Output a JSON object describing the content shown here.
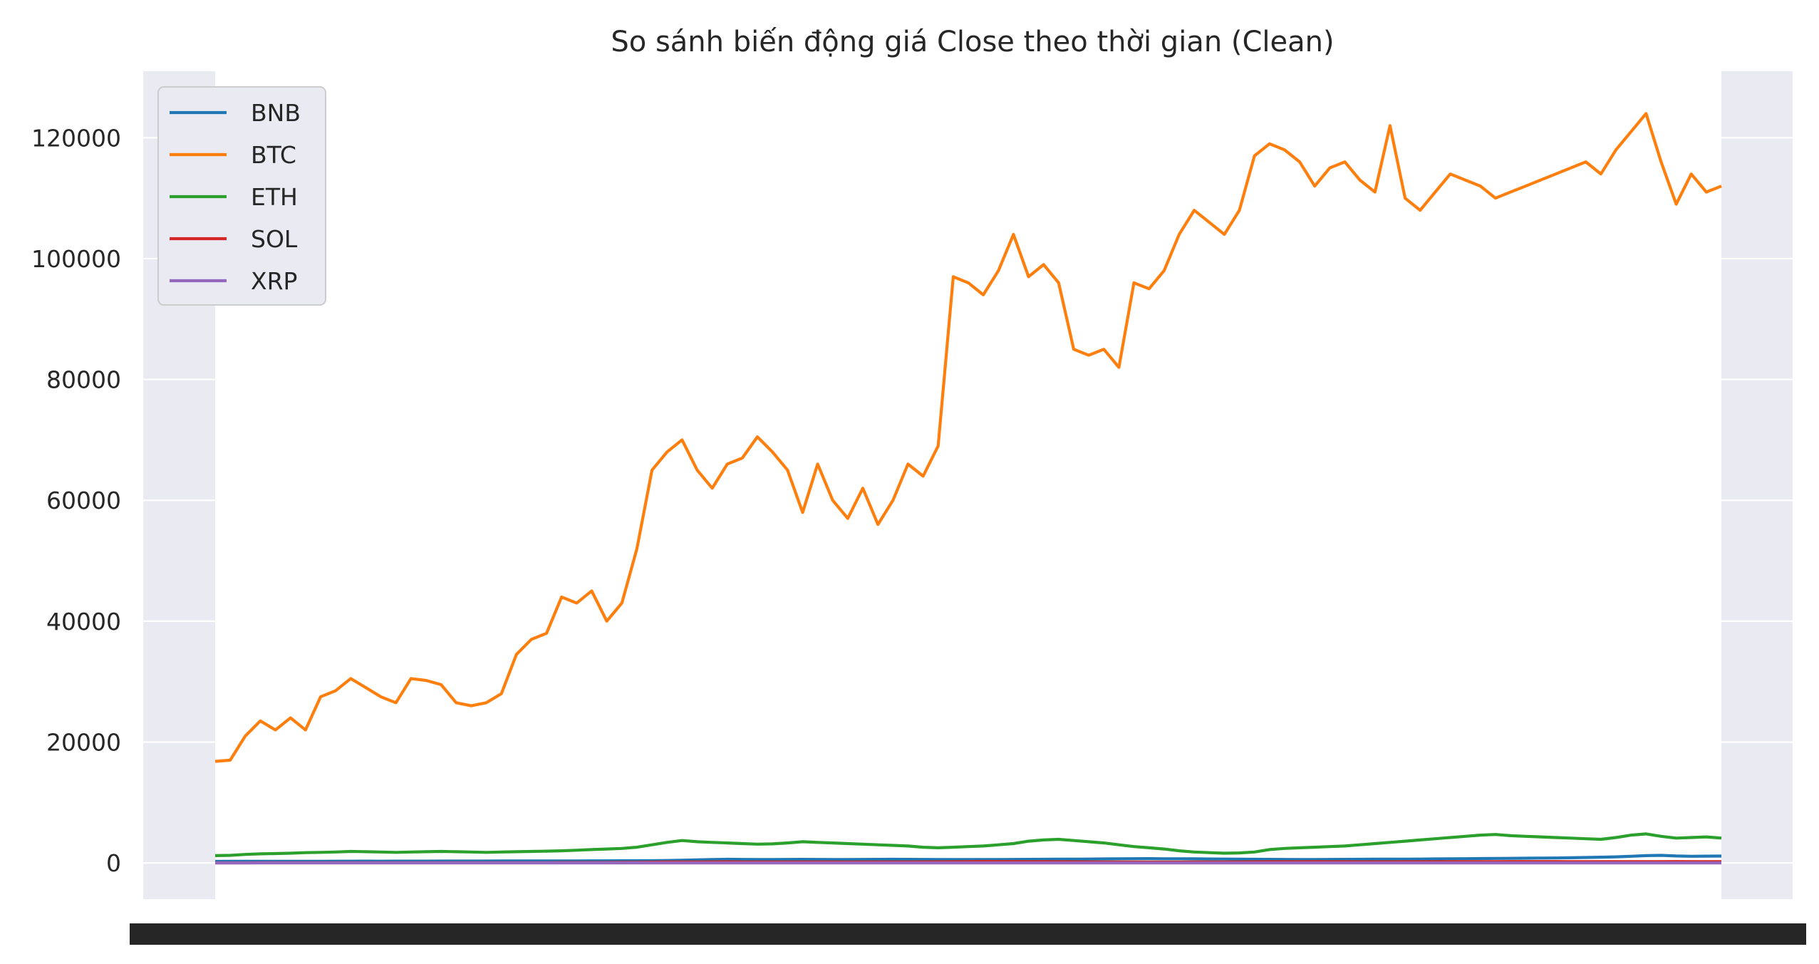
{
  "chart_data": {
    "type": "line",
    "title": "So sánh biến động giá Close theo thời gian (Clean)",
    "xlabel": "",
    "ylabel": "",
    "ylim": [
      -6000,
      131000
    ],
    "yticks": [
      0,
      20000,
      40000,
      60000,
      80000,
      100000,
      120000
    ],
    "ytick_labels": [
      "0",
      "20000",
      "40000",
      "60000",
      "80000",
      "100000",
      "120000"
    ],
    "grid": true,
    "legend_position": "top-left",
    "x_tick_labels_note": "overlapping unreadable date labels",
    "x": [
      0,
      1,
      2,
      3,
      4,
      5,
      6,
      7,
      8,
      9,
      10,
      11,
      12,
      13,
      14,
      15,
      16,
      17,
      18,
      19,
      20,
      21,
      22,
      23,
      24,
      25,
      26,
      27,
      28,
      29,
      30,
      31,
      32,
      33,
      34,
      35,
      36,
      37,
      38,
      39,
      40,
      41,
      42,
      43,
      44,
      45,
      46,
      47,
      48,
      49,
      50,
      51,
      52,
      53,
      54,
      55,
      56,
      57,
      58,
      59,
      60,
      61,
      62,
      63,
      64,
      65,
      66,
      67,
      68,
      69,
      70,
      71,
      72,
      73,
      74,
      75,
      76,
      77,
      78,
      79,
      80,
      81,
      82,
      83,
      84,
      85,
      86,
      87,
      88,
      89,
      90,
      91,
      92,
      93,
      94,
      95,
      96,
      97,
      98,
      99,
      100
    ],
    "series": [
      {
        "name": "BNB",
        "color": "#1f77b4",
        "values": [
          250,
          255,
          260,
          265,
          270,
          268,
          272,
          275,
          280,
          285,
          290,
          288,
          292,
          295,
          300,
          305,
          310,
          308,
          312,
          315,
          318,
          320,
          325,
          330,
          335,
          340,
          345,
          350,
          360,
          370,
          400,
          450,
          500,
          560,
          600,
          580,
          570,
          560,
          575,
          590,
          580,
          570,
          560,
          575,
          590,
          600,
          590,
          580,
          570,
          560,
          555,
          560,
          570,
          580,
          590,
          600,
          610,
          620,
          640,
          660,
          680,
          700,
          710,
          690,
          680,
          670,
          650,
          640,
          620,
          600,
          590,
          580,
          570,
          560,
          575,
          590,
          600,
          610,
          620,
          630,
          640,
          660,
          680,
          700,
          720,
          740,
          760,
          780,
          800,
          820,
          850,
          900,
          950,
          1000,
          1100,
          1200,
          1250,
          1150,
          1100,
          1120,
          1130
        ]
      },
      {
        "name": "BTC",
        "color": "#ff7f0e",
        "values": [
          16800,
          17000,
          21000,
          23500,
          22000,
          24000,
          22000,
          27500,
          28500,
          30500,
          29000,
          27500,
          26500,
          30500,
          30200,
          29500,
          26500,
          26000,
          26500,
          28000,
          34500,
          37000,
          38000,
          44000,
          43000,
          45000,
          40000,
          43000,
          52000,
          65000,
          68000,
          70000,
          65000,
          62000,
          66000,
          67000,
          70500,
          68000,
          65000,
          58000,
          66000,
          60000,
          57000,
          62000,
          56000,
          60000,
          66000,
          64000,
          69000,
          97000,
          96000,
          94000,
          98000,
          104000,
          97000,
          99000,
          96000,
          85000,
          84000,
          85000,
          82000,
          96000,
          95000,
          98000,
          104000,
          108000,
          106000,
          104000,
          108000,
          117000,
          119000,
          118000,
          116000,
          112000,
          115000,
          116000,
          113000,
          111000,
          122000,
          110000,
          108000,
          111000,
          114000,
          113000,
          112000,
          110000,
          111000,
          112000,
          113000,
          114000,
          115000,
          116000,
          114000,
          118000,
          121000,
          124000,
          116000,
          109000,
          114000,
          111000,
          112000
        ]
      },
      {
        "name": "ETH",
        "color": "#2ca02c",
        "values": [
          1200,
          1250,
          1400,
          1500,
          1550,
          1600,
          1700,
          1750,
          1800,
          1900,
          1850,
          1800,
          1750,
          1800,
          1850,
          1900,
          1850,
          1800,
          1750,
          1800,
          1850,
          1900,
          1950,
          2000,
          2100,
          2200,
          2300,
          2400,
          2600,
          3000,
          3400,
          3700,
          3500,
          3400,
          3300,
          3200,
          3100,
          3150,
          3300,
          3500,
          3400,
          3300,
          3200,
          3100,
          3000,
          2900,
          2800,
          2600,
          2500,
          2600,
          2700,
          2800,
          3000,
          3200,
          3600,
          3800,
          3900,
          3700,
          3500,
          3300,
          3000,
          2700,
          2500,
          2300,
          2000,
          1800,
          1700,
          1600,
          1650,
          1800,
          2200,
          2400,
          2500,
          2600,
          2700,
          2800,
          3000,
          3200,
          3400,
          3600,
          3800,
          4000,
          4200,
          4400,
          4600,
          4700,
          4500,
          4400,
          4300,
          4200,
          4100,
          4000,
          3900,
          4200,
          4600,
          4800,
          4400,
          4100,
          4200,
          4300,
          4100
        ]
      },
      {
        "name": "SOL",
        "color": "#d62728",
        "values": [
          12,
          14,
          18,
          20,
          22,
          22,
          20,
          21,
          22,
          23,
          22,
          21,
          20,
          21,
          22,
          23,
          22,
          21,
          20,
          22,
          25,
          30,
          40,
          55,
          60,
          62,
          65,
          80,
          100,
          120,
          140,
          150,
          160,
          170,
          175,
          160,
          150,
          140,
          145,
          150,
          145,
          140,
          135,
          140,
          145,
          150,
          160,
          170,
          180,
          190,
          200,
          240,
          230,
          220,
          210,
          200,
          190,
          180,
          170,
          160,
          150,
          140,
          130,
          125,
          130,
          140,
          150,
          160,
          170,
          180,
          185,
          190,
          195,
          200,
          190,
          185,
          180,
          175,
          180,
          185,
          190,
          195,
          200,
          205,
          210,
          215,
          220,
          225,
          230,
          220,
          215,
          210,
          205,
          200,
          205,
          210,
          215,
          220,
          215,
          210,
          205
        ]
      },
      {
        "name": "XRP",
        "color": "#9467bd",
        "values": [
          0.34,
          0.36,
          0.38,
          0.39,
          0.42,
          0.45,
          0.5,
          0.52,
          0.55,
          0.6,
          0.65,
          0.7,
          0.68,
          0.62,
          0.55,
          0.5,
          0.52,
          0.55,
          0.6,
          0.62,
          0.6,
          0.58,
          0.55,
          0.52,
          0.5,
          0.55,
          0.6,
          0.62,
          0.6,
          0.58,
          0.55,
          0.52,
          0.5,
          0.52,
          0.55,
          0.58,
          0.6,
          0.62,
          0.6,
          0.58,
          0.55,
          0.52,
          0.5,
          0.55,
          0.6,
          0.7,
          1.0,
          1.5,
          2.0,
          2.4,
          2.3,
          2.2,
          2.4,
          2.5,
          2.3,
          2.2,
          2.1,
          2.0,
          2.2,
          2.3,
          2.4,
          2.5,
          2.6,
          2.7,
          2.8,
          3.0,
          3.2,
          3.4,
          3.5,
          3.3,
          3.1,
          3.0,
          2.9,
          2.8,
          2.85,
          2.9,
          2.95,
          3.0,
          3.05,
          3.1,
          3.0,
          2.95,
          2.9,
          2.85,
          2.8,
          2.9,
          3.0,
          3.1,
          2.95,
          2.9,
          2.85,
          2.8,
          2.85,
          2.9,
          2.95,
          3.0,
          2.95,
          2.9,
          2.85,
          2.8,
          2.9
        ]
      }
    ]
  }
}
